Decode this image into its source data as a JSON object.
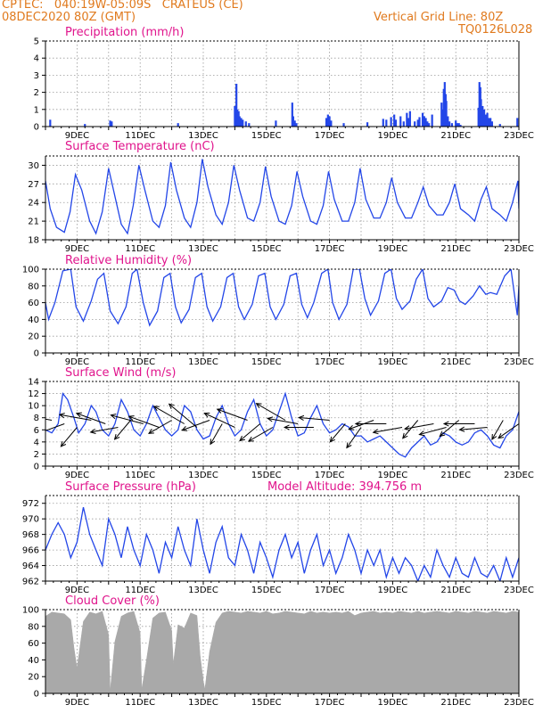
{
  "header": {
    "line1": "CPTEC:   040:19W-05:09S   CRATEUS (CE)",
    "line2": "08DEC2020 80Z (GMT)",
    "right1": "Vertical Grid Line: 80Z",
    "right2": "TQ0126L028"
  },
  "x_ticks": [
    "9DEC",
    "11DEC",
    "13DEC",
    "15DEC",
    "17DEC",
    "19DEC",
    "21DEC",
    "23DEC"
  ],
  "x_tick_days": [
    9,
    11,
    13,
    15,
    17,
    19,
    21,
    23
  ],
  "x_range_days": [
    8.0,
    23.0
  ],
  "colors": {
    "line": "#2346e8",
    "cloud": "#a9a9a9",
    "title": "#e0148c",
    "header": "#e07a1e",
    "grid": "#9a9a9a"
  },
  "chart_data": [
    {
      "type": "bar",
      "title": "Precipitation (mm/h)",
      "ylim": [
        0,
        5
      ],
      "y_ticks": [
        "0",
        "1",
        "2",
        "3",
        "4",
        "5"
      ],
      "x_days": [
        8.15,
        9.25,
        10.05,
        10.1,
        12.2,
        14.0,
        14.05,
        14.08,
        14.1,
        14.12,
        14.15,
        14.2,
        14.25,
        14.35,
        14.45,
        15.3,
        15.82,
        15.85,
        15.9,
        15.95,
        16.9,
        16.95,
        17.0,
        17.05,
        17.45,
        18.2,
        18.7,
        18.8,
        18.95,
        19.05,
        19.1,
        19.25,
        19.35,
        19.45,
        19.5,
        19.55,
        19.7,
        19.8,
        19.85,
        19.95,
        20.0,
        20.05,
        20.1,
        20.15,
        20.25,
        20.55,
        20.6,
        20.62,
        20.65,
        20.68,
        20.7,
        20.75,
        20.8,
        20.88,
        21.0,
        21.05,
        21.1,
        21.15,
        21.72,
        21.75,
        21.78,
        21.8,
        21.85,
        21.88,
        21.9,
        21.95,
        22.0,
        22.05,
        22.1,
        22.15,
        22.4,
        22.95
      ],
      "values": [
        0.4,
        0.15,
        0.35,
        0.3,
        0.2,
        1.2,
        2.5,
        1.0,
        0.8,
        0.9,
        0.6,
        0.5,
        0.4,
        0.3,
        0.2,
        0.35,
        1.4,
        0.6,
        0.35,
        0.2,
        0.5,
        0.7,
        0.6,
        0.35,
        0.2,
        0.25,
        0.45,
        0.4,
        0.55,
        0.7,
        0.4,
        0.6,
        0.3,
        0.8,
        0.5,
        0.9,
        0.3,
        0.4,
        0.55,
        0.8,
        0.6,
        0.5,
        0.3,
        0.2,
        0.7,
        1.4,
        1.0,
        2.2,
        2.6,
        1.9,
        1.5,
        0.6,
        0.3,
        0.2,
        0.35,
        0.2,
        0.2,
        0.1,
        1.1,
        2.6,
        2.3,
        1.6,
        1.2,
        0.9,
        1.0,
        0.7,
        0.8,
        0.5,
        0.5,
        0.3,
        0.15,
        0.5
      ]
    },
    {
      "type": "line",
      "title": "Surface Temperature (nC)",
      "ylim": [
        18,
        31.5
      ],
      "y_ticks": [
        "18",
        "21",
        "24",
        "27",
        "30"
      ],
      "series": [
        {
          "x": [
            8.0,
            8.15,
            8.35,
            8.6,
            8.78,
            8.95,
            9.15,
            9.4,
            9.6,
            9.8,
            10.0,
            10.2,
            10.4,
            10.6,
            10.78,
            10.96,
            11.15,
            11.4,
            11.6,
            11.8,
            11.97,
            12.15,
            12.4,
            12.6,
            12.8,
            12.97,
            13.15,
            13.4,
            13.6,
            13.8,
            13.97,
            14.15,
            14.4,
            14.6,
            14.8,
            14.97,
            15.15,
            15.4,
            15.6,
            15.8,
            15.97,
            16.15,
            16.4,
            16.6,
            16.8,
            16.97,
            17.15,
            17.4,
            17.6,
            17.8,
            17.97,
            18.15,
            18.4,
            18.6,
            18.8,
            18.97,
            19.15,
            19.4,
            19.6,
            19.8,
            19.97,
            20.15,
            20.4,
            20.6,
            20.8,
            20.97,
            21.15,
            21.4,
            21.6,
            21.8,
            21.97,
            22.15,
            22.4,
            22.6,
            22.8,
            22.97,
            23.0
          ],
          "y": [
            27.5,
            23,
            20,
            19.2,
            22.5,
            28.5,
            26,
            21,
            19,
            22.5,
            29.5,
            25,
            20.5,
            19,
            23.5,
            30,
            26,
            21,
            20,
            23.5,
            30.5,
            26,
            21.5,
            20,
            24,
            31,
            26.5,
            22,
            20.5,
            24,
            30,
            26,
            21.5,
            21,
            24,
            29.8,
            25,
            21,
            20.5,
            23.5,
            29,
            25,
            21,
            20.5,
            23.5,
            29,
            24.5,
            21,
            21,
            24,
            29.5,
            24.5,
            21.5,
            21.5,
            24,
            28,
            24,
            21.5,
            21.5,
            24,
            26.5,
            23.5,
            22,
            22,
            24,
            27,
            23,
            22,
            21,
            24.5,
            26.5,
            23,
            22,
            21,
            24,
            27.5,
            23
          ]
        }
      ]
    },
    {
      "type": "line",
      "title": "Relative Humidity (%)",
      "ylim": [
        0,
        100
      ],
      "y_ticks": [
        "0",
        "20",
        "40",
        "60",
        "80",
        "100"
      ],
      "series": [
        {
          "x": [
            8.0,
            8.1,
            8.3,
            8.55,
            8.8,
            8.97,
            9.2,
            9.45,
            9.65,
            9.85,
            10.05,
            10.3,
            10.55,
            10.75,
            10.9,
            11.1,
            11.3,
            11.55,
            11.75,
            11.95,
            12.12,
            12.3,
            12.55,
            12.75,
            12.95,
            13.12,
            13.3,
            13.55,
            13.75,
            13.95,
            14.12,
            14.3,
            14.55,
            14.75,
            14.95,
            15.12,
            15.3,
            15.55,
            15.75,
            15.95,
            16.12,
            16.3,
            16.5,
            16.75,
            16.95,
            17.1,
            17.3,
            17.55,
            17.75,
            17.95,
            18.12,
            18.3,
            18.55,
            18.75,
            18.95,
            19.12,
            19.3,
            19.55,
            19.75,
            19.95,
            20.12,
            20.3,
            20.55,
            20.75,
            20.95,
            21.12,
            21.3,
            21.55,
            21.75,
            21.95,
            22.1,
            22.3,
            22.55,
            22.75,
            22.95,
            23.0
          ],
          "y": [
            60,
            40,
            60,
            98,
            100,
            55,
            38,
            62,
            88,
            95,
            50,
            35,
            55,
            95,
            100,
            60,
            33,
            50,
            90,
            95,
            55,
            36,
            52,
            90,
            95,
            55,
            38,
            55,
            90,
            95,
            55,
            40,
            58,
            92,
            95,
            55,
            40,
            58,
            92,
            95,
            58,
            42,
            60,
            95,
            100,
            60,
            40,
            58,
            100,
            100,
            65,
            45,
            62,
            95,
            100,
            65,
            52,
            62,
            88,
            100,
            65,
            55,
            62,
            78,
            75,
            62,
            58,
            68,
            80,
            70,
            72,
            70,
            92,
            100,
            45,
            80
          ]
        }
      ]
    },
    {
      "type": "line",
      "title": "Surface Wind (m/s)",
      "ylim": [
        0,
        14
      ],
      "y_ticks": [
        "0",
        "2",
        "4",
        "6",
        "8",
        "10",
        "12",
        "14"
      ],
      "series": [
        {
          "x": [
            8.0,
            8.2,
            8.4,
            8.55,
            8.7,
            8.9,
            9.05,
            9.25,
            9.45,
            9.6,
            9.8,
            10.0,
            10.2,
            10.4,
            10.6,
            10.8,
            11.0,
            11.2,
            11.4,
            11.6,
            11.8,
            12.0,
            12.2,
            12.4,
            12.6,
            12.8,
            13.0,
            13.2,
            13.4,
            13.6,
            13.8,
            14.0,
            14.2,
            14.4,
            14.6,
            14.8,
            15.0,
            15.2,
            15.4,
            15.6,
            15.8,
            16.0,
            16.2,
            16.4,
            16.6,
            16.8,
            17.0,
            17.2,
            17.4,
            17.6,
            17.8,
            18.0,
            18.2,
            18.4,
            18.6,
            18.8,
            19.0,
            19.2,
            19.4,
            19.6,
            19.8,
            20.0,
            20.2,
            20.4,
            20.6,
            20.8,
            21.0,
            21.2,
            21.4,
            21.6,
            21.8,
            22.0,
            22.2,
            22.4,
            22.6,
            22.8,
            23.0
          ],
          "y": [
            6,
            5.5,
            7,
            12,
            11,
            8,
            5.5,
            7,
            10,
            9,
            6,
            5,
            7,
            11,
            9,
            6,
            5,
            7,
            10,
            8,
            6,
            5,
            6,
            10,
            9,
            6,
            4.5,
            5,
            8,
            10,
            7,
            5,
            6,
            9,
            11,
            7,
            5,
            6,
            9,
            12,
            8,
            5,
            5.5,
            8,
            10,
            7,
            5.5,
            6,
            7,
            6.5,
            5,
            5,
            4,
            4.5,
            5,
            4,
            3,
            2,
            1.5,
            3,
            4,
            5,
            3.5,
            4,
            5.5,
            5,
            4,
            3.5,
            4,
            5.5,
            6,
            5,
            3.5,
            3,
            5,
            6,
            9
          ]
        }
      ],
      "vectors": {
        "x_days": [
          8.2,
          8.6,
          9.0,
          9.45,
          9.9,
          10.3,
          10.7,
          11.1,
          11.6,
          12.0,
          12.4,
          12.8,
          13.2,
          13.6,
          14.0,
          14.4,
          14.8,
          15.2,
          15.6,
          16.0,
          16.5,
          17.0,
          17.5,
          18.0,
          18.4,
          18.8,
          19.3,
          19.8,
          20.3,
          20.7,
          21.1,
          21.6,
          22.0,
          22.5,
          23.0
        ],
        "speed": [
          7.5,
          6,
          5,
          7.5,
          7,
          6,
          5,
          8,
          7.5,
          5.5,
          8.5,
          9,
          6.5,
          4.5,
          8,
          7.5,
          5.5,
          6,
          8,
          7,
          6.5,
          7,
          4.5,
          5,
          5.5,
          7,
          6.5,
          4.5,
          6.5,
          6,
          5,
          7,
          6,
          4,
          5
        ],
        "from_deg": [
          100,
          70,
          40,
          100,
          110,
          80,
          40,
          105,
          110,
          60,
          120,
          130,
          70,
          30,
          115,
          110,
          50,
          60,
          120,
          100,
          90,
          95,
          40,
          35,
          70,
          90,
          80,
          40,
          80,
          75,
          50,
          90,
          85,
          30,
          55
        ]
      }
    },
    {
      "type": "line",
      "title": "Surface Pressure (hPa)",
      "annotation": "Model Altitude: 394.756 m",
      "ylim": [
        962,
        973
      ],
      "y_ticks": [
        "962",
        "964",
        "966",
        "968",
        "970",
        "972"
      ],
      "series": [
        {
          "x": [
            8.0,
            8.2,
            8.4,
            8.6,
            8.8,
            9.0,
            9.2,
            9.4,
            9.6,
            9.8,
            10.0,
            10.2,
            10.4,
            10.6,
            10.8,
            11.0,
            11.2,
            11.4,
            11.6,
            11.8,
            12.0,
            12.2,
            12.4,
            12.6,
            12.8,
            13.0,
            13.2,
            13.4,
            13.6,
            13.8,
            14.0,
            14.2,
            14.4,
            14.6,
            14.8,
            15.0,
            15.2,
            15.4,
            15.6,
            15.8,
            16.0,
            16.2,
            16.4,
            16.6,
            16.8,
            17.0,
            17.2,
            17.4,
            17.6,
            17.8,
            18.0,
            18.2,
            18.4,
            18.6,
            18.8,
            19.0,
            19.2,
            19.4,
            19.6,
            19.8,
            20.0,
            20.2,
            20.4,
            20.6,
            20.8,
            21.0,
            21.2,
            21.4,
            21.6,
            21.8,
            22.0,
            22.2,
            22.4,
            22.6,
            22.8,
            23.0
          ],
          "y": [
            966,
            968,
            969.5,
            968,
            965,
            967,
            971.5,
            968,
            966,
            964,
            970,
            968,
            965,
            969,
            966,
            964,
            968,
            966,
            963,
            967,
            965,
            969,
            966,
            964,
            970,
            966,
            963,
            967,
            969,
            965,
            964,
            968,
            966,
            963,
            967,
            965,
            962.5,
            966,
            968,
            965,
            967,
            963,
            966,
            968,
            964,
            966,
            963,
            965,
            968,
            966,
            963,
            966,
            964,
            966,
            962.5,
            965,
            963,
            965,
            964,
            962,
            964,
            962.5,
            966,
            964,
            962.5,
            965,
            963,
            962.5,
            965,
            963,
            962.5,
            964,
            962,
            965,
            962.5,
            965
          ]
        }
      ]
    },
    {
      "type": "area",
      "title": "Cloud Cover (%)",
      "ylim": [
        0,
        100
      ],
      "y_ticks": [
        "0",
        "20",
        "40",
        "60",
        "80",
        "100"
      ],
      "series": [
        {
          "x": [
            8.0,
            8.2,
            8.4,
            8.6,
            8.8,
            8.9,
            9.0,
            9.2,
            9.4,
            9.6,
            9.8,
            10.0,
            10.05,
            10.2,
            10.4,
            10.6,
            10.8,
            11.0,
            11.05,
            11.2,
            11.4,
            11.6,
            11.8,
            12.0,
            12.05,
            12.2,
            12.4,
            12.6,
            12.8,
            12.9,
            13.0,
            13.05,
            13.2,
            13.4,
            13.6,
            13.8,
            14.0,
            14.2,
            14.4,
            14.6,
            14.8,
            15.0,
            15.2,
            15.4,
            15.6,
            15.8,
            16.0,
            16.2,
            16.4,
            16.6,
            16.8,
            17.0,
            17.2,
            17.4,
            17.6,
            17.8,
            18.0,
            18.2,
            18.4,
            18.6,
            18.8,
            19.0,
            19.2,
            19.4,
            19.6,
            19.8,
            20.0,
            20.2,
            20.4,
            20.6,
            20.8,
            21.0,
            21.2,
            21.4,
            21.6,
            21.8,
            22.0,
            22.2,
            22.4,
            22.6,
            22.8,
            23.0
          ],
          "y": [
            92,
            97,
            96,
            95,
            88,
            55,
            30,
            86,
            97,
            95,
            98,
            70,
            3,
            62,
            92,
            96,
            98,
            72,
            5,
            40,
            90,
            96,
            97,
            75,
            35,
            82,
            78,
            96,
            93,
            45,
            15,
            5,
            50,
            85,
            96,
            98,
            97,
            96,
            98,
            97,
            96,
            98,
            95,
            96,
            98,
            97,
            96,
            95,
            98,
            96,
            97,
            96,
            97,
            96,
            98,
            93,
            96,
            97,
            98,
            96,
            97,
            96,
            98,
            97,
            96,
            98,
            96,
            97,
            98,
            97,
            96,
            98,
            97,
            96,
            98,
            97,
            96,
            98,
            97,
            96,
            98,
            97
          ]
        }
      ]
    }
  ]
}
